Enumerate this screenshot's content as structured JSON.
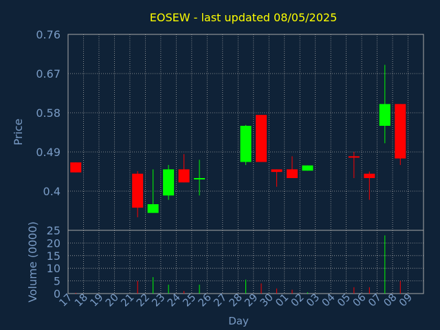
{
  "chart_data": [
    {
      "type": "candlestick",
      "title": "EOSEW - last updated 08/05/2025",
      "ylabel": "Price",
      "ylim": [
        0.4,
        0.76
      ],
      "yticks": [
        "0.76",
        "0.67",
        "0.58",
        "0.49",
        "0.4"
      ],
      "categories": [
        "17",
        "18",
        "19",
        "20",
        "21",
        "22",
        "23",
        "24",
        "25",
        "26",
        "27",
        "28",
        "29",
        "30",
        "01",
        "02",
        "03",
        "04",
        "05",
        "06",
        "07",
        "08",
        "09"
      ],
      "candles": [
        {
          "day": "17",
          "open": 0.466,
          "high": 0.466,
          "low": 0.443,
          "close": 0.443,
          "color": "#ff0000"
        },
        {
          "day": "21",
          "open": 0.44,
          "high": 0.446,
          "low": 0.34,
          "close": 0.362,
          "color": "#ff0000"
        },
        {
          "day": "22",
          "open": 0.35,
          "high": 0.45,
          "low": 0.35,
          "close": 0.37,
          "color": "#00ff00"
        },
        {
          "day": "23",
          "open": 0.39,
          "high": 0.46,
          "low": 0.38,
          "close": 0.45,
          "color": "#00ff00"
        },
        {
          "day": "24",
          "open": 0.45,
          "high": 0.485,
          "low": 0.42,
          "close": 0.42,
          "color": "#ff0000"
        },
        {
          "day": "25",
          "open": 0.43,
          "high": 0.472,
          "low": 0.39,
          "close": 0.43,
          "color": "#00ff00"
        },
        {
          "day": "28",
          "open": 0.467,
          "high": 0.552,
          "low": 0.46,
          "close": 0.55,
          "color": "#00ff00"
        },
        {
          "day": "29",
          "open": 0.575,
          "high": 0.575,
          "low": 0.467,
          "close": 0.467,
          "color": "#ff0000"
        },
        {
          "day": "30",
          "open": 0.45,
          "high": 0.45,
          "low": 0.41,
          "close": 0.444,
          "color": "#ff0000"
        },
        {
          "day": "01",
          "open": 0.45,
          "high": 0.48,
          "low": 0.43,
          "close": 0.43,
          "color": "#ff0000"
        },
        {
          "day": "02",
          "open": 0.447,
          "high": 0.459,
          "low": 0.447,
          "close": 0.459,
          "color": "#00ff00"
        },
        {
          "day": "05",
          "open": 0.48,
          "high": 0.49,
          "low": 0.43,
          "close": 0.478,
          "color": "#ff0000"
        },
        {
          "day": "06",
          "open": 0.44,
          "high": 0.445,
          "low": 0.38,
          "close": 0.43,
          "color": "#ff0000"
        },
        {
          "day": "07",
          "open": 0.55,
          "high": 0.69,
          "low": 0.51,
          "close": 0.6,
          "color": "#00ff00"
        },
        {
          "day": "08",
          "open": 0.6,
          "high": 0.6,
          "low": 0.46,
          "close": 0.475,
          "color": "#ff0000"
        }
      ]
    },
    {
      "type": "bar",
      "ylabel": "Volume (0000)",
      "xlabel": "Day",
      "ylim": [
        0,
        25
      ],
      "yticks": [
        "25",
        "20",
        "15",
        "10",
        "5",
        "0"
      ],
      "categories": [
        "17",
        "18",
        "19",
        "20",
        "21",
        "22",
        "23",
        "24",
        "25",
        "26",
        "27",
        "28",
        "29",
        "30",
        "01",
        "02",
        "03",
        "04",
        "05",
        "06",
        "07",
        "08",
        "09"
      ],
      "bars": [
        {
          "day": "17",
          "value": 0.3,
          "color": "#ff0000"
        },
        {
          "day": "21",
          "value": 5,
          "color": "#ff0000"
        },
        {
          "day": "22",
          "value": 6.5,
          "color": "#00ff00"
        },
        {
          "day": "23",
          "value": 3.5,
          "color": "#00ff00"
        },
        {
          "day": "24",
          "value": 1,
          "color": "#ff0000"
        },
        {
          "day": "25",
          "value": 3.5,
          "color": "#00ff00"
        },
        {
          "day": "28",
          "value": 5.5,
          "color": "#00ff00"
        },
        {
          "day": "29",
          "value": 4,
          "color": "#ff0000"
        },
        {
          "day": "30",
          "value": 2,
          "color": "#ff0000"
        },
        {
          "day": "01",
          "value": 1.5,
          "color": "#ff0000"
        },
        {
          "day": "02",
          "value": 0.5,
          "color": "#00ff00"
        },
        {
          "day": "05",
          "value": 2.5,
          "color": "#ff0000"
        },
        {
          "day": "06",
          "value": 2.5,
          "color": "#ff0000"
        },
        {
          "day": "07",
          "value": 23,
          "color": "#00ff00"
        },
        {
          "day": "08",
          "value": 5,
          "color": "#ff0000"
        }
      ]
    }
  ],
  "colors": {
    "background": "#0f2237",
    "title": "#ffff00",
    "axis_text": "#7a9cc6",
    "grid": "#aaaaaa",
    "up": "#00ff00",
    "down": "#ff0000"
  }
}
